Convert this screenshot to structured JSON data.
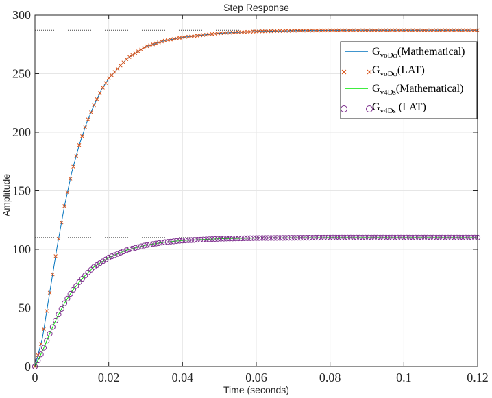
{
  "chart_data": {
    "type": "line",
    "title": "Step Response",
    "xlabel": "Time (seconds)",
    "ylabel": "Amplitude",
    "xlim": [
      0,
      0.12
    ],
    "ylim": [
      0,
      300
    ],
    "xticks": [
      0,
      0.02,
      0.04,
      0.06,
      0.08,
      0.1,
      0.12
    ],
    "xtick_labels": [
      "0",
      "0.02",
      "0.04",
      "0.06",
      "0.08",
      "0.1",
      "0.12"
    ],
    "yticks": [
      0,
      50,
      100,
      150,
      200,
      250,
      300
    ],
    "ytick_labels": [
      "0",
      "50",
      "100",
      "150",
      "200",
      "250",
      "300"
    ],
    "grid": true,
    "legend_position": "top-right",
    "steady_state_lines": [
      287,
      110
    ],
    "series": [
      {
        "name_main": "G",
        "name_sub": "voDφ",
        "name_tail": "(Mathematical)",
        "style": "line",
        "color": "#0072BD",
        "x": [
          0,
          0.002,
          0.004,
          0.006,
          0.008,
          0.01,
          0.012,
          0.014,
          0.016,
          0.018,
          0.02,
          0.025,
          0.03,
          0.035,
          0.04,
          0.05,
          0.06,
          0.07,
          0.08,
          0.09,
          0.1,
          0.11,
          0.12
        ],
        "y": [
          0,
          24,
          63,
          102,
          137,
          166,
          189,
          208,
          223,
          236,
          246,
          263,
          273,
          278,
          281,
          284.5,
          286,
          286.6,
          286.9,
          287,
          287,
          287,
          287
        ]
      },
      {
        "name_main": "G",
        "name_sub": "voDφ",
        "name_tail": "(LAT)",
        "style": "x-marker",
        "color": "#D95319",
        "x": [
          0,
          0.002,
          0.004,
          0.006,
          0.008,
          0.01,
          0.012,
          0.014,
          0.016,
          0.018,
          0.02,
          0.025,
          0.03,
          0.035,
          0.04,
          0.05,
          0.06,
          0.07,
          0.08,
          0.09,
          0.1,
          0.11,
          0.12
        ],
        "y": [
          0,
          24,
          63,
          102,
          137,
          166,
          189,
          208,
          223,
          236,
          246,
          263,
          273,
          278,
          281,
          284.5,
          286,
          286.6,
          286.9,
          287,
          287,
          287,
          287
        ]
      },
      {
        "name_main": "G",
        "name_sub": "v4Ds",
        "name_tail": "(Mathematical)",
        "style": "line",
        "color": "#00E600",
        "x": [
          0,
          0.002,
          0.004,
          0.006,
          0.008,
          0.01,
          0.012,
          0.014,
          0.016,
          0.018,
          0.02,
          0.025,
          0.03,
          0.035,
          0.04,
          0.05,
          0.06,
          0.07,
          0.08,
          0.09,
          0.1,
          0.11,
          0.12
        ],
        "y": [
          0,
          13,
          28,
          42,
          54,
          64,
          72,
          79,
          85,
          89,
          93,
          99.5,
          103.5,
          106,
          107.5,
          109,
          109.6,
          109.8,
          110,
          110,
          110,
          110,
          110
        ]
      },
      {
        "name_main": "G",
        "name_sub": "v4Ds",
        "name_tail": " (LAT)",
        "style": "o-marker",
        "color": "#7E2F8E",
        "x": [
          0,
          0.002,
          0.004,
          0.006,
          0.008,
          0.01,
          0.012,
          0.014,
          0.016,
          0.018,
          0.02,
          0.025,
          0.03,
          0.035,
          0.04,
          0.05,
          0.06,
          0.07,
          0.08,
          0.09,
          0.1,
          0.11,
          0.12
        ],
        "y": [
          0,
          13,
          28,
          42,
          54,
          64,
          72,
          79,
          85,
          89,
          93,
          99.5,
          103.5,
          106,
          107.5,
          109,
          109.6,
          109.8,
          110,
          110,
          110,
          110,
          110
        ]
      }
    ]
  }
}
